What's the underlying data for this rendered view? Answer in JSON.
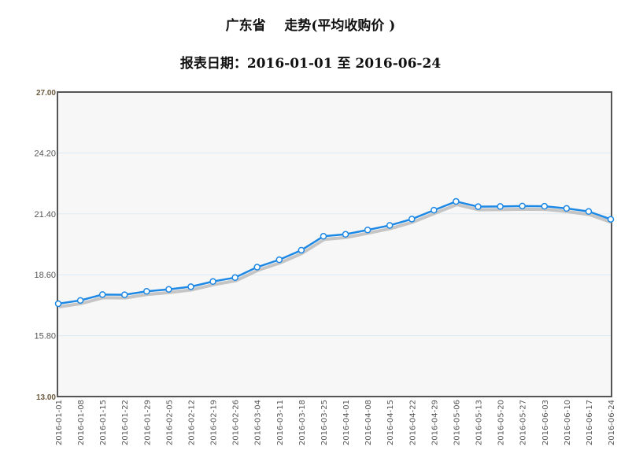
{
  "chart_data": {
    "type": "line",
    "title": "广东省    走势(平均收购价 )",
    "subtitle": "报表日期：2016-01-01 至 2016-06-24",
    "xlabel": "",
    "ylabel": "",
    "ylim": [
      13.0,
      27.0
    ],
    "yticks": [
      "13.00",
      "15.80",
      "18.60",
      "21.40",
      "24.20",
      "27.00"
    ],
    "grid": true,
    "colors": {
      "line": "#1e88e5",
      "shadow": "#b8b8b8",
      "marker_fill": "#ffffff",
      "plot_bg": "#f7f7f7",
      "frame": "#555555"
    },
    "categories": [
      "2016-01-01",
      "2016-01-08",
      "2016-01-15",
      "2016-01-22",
      "2016-01-29",
      "2016-02-05",
      "2016-02-12",
      "2016-02-19",
      "2016-02-26",
      "2016-03-04",
      "2016-03-11",
      "2016-03-18",
      "2016-03-25",
      "2016-04-01",
      "2016-04-08",
      "2016-04-15",
      "2016-04-22",
      "2016-04-29",
      "2016-05-06",
      "2016-05-13",
      "2016-05-20",
      "2016-05-27",
      "2016-06-03",
      "2016-06-10",
      "2016-06-17",
      "2016-06-24"
    ],
    "values": [
      17.27,
      17.42,
      17.69,
      17.68,
      17.84,
      17.93,
      18.05,
      18.29,
      18.47,
      18.95,
      19.29,
      19.73,
      20.37,
      20.46,
      20.66,
      20.87,
      21.16,
      21.57,
      21.97,
      21.73,
      21.74,
      21.76,
      21.75,
      21.65,
      21.51,
      21.15
    ]
  }
}
